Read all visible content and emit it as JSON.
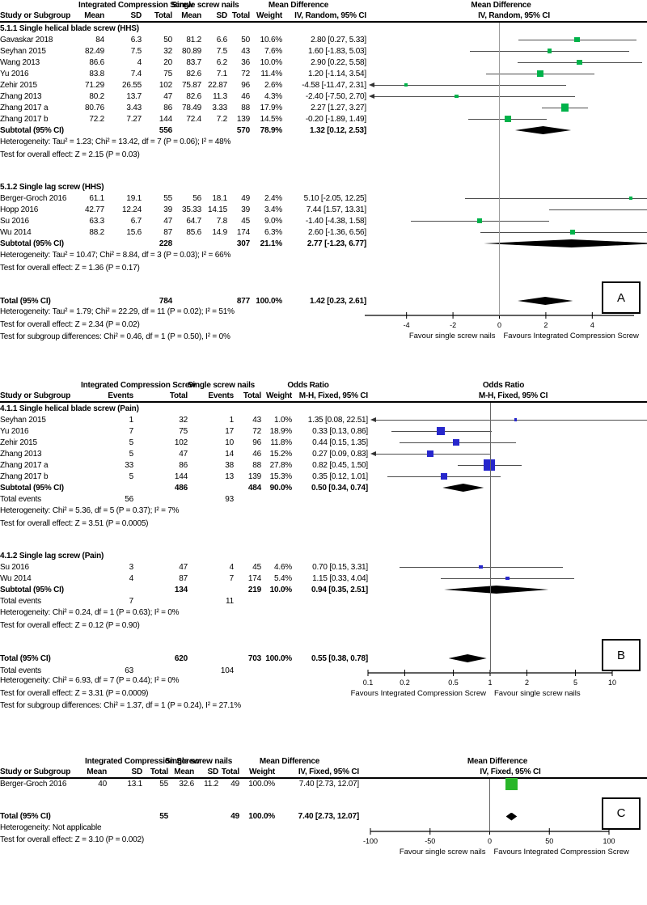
{
  "chart_data": [
    {
      "type": "forest",
      "label": "A",
      "effect_title": "Mean Difference",
      "effect_method": "IV, Random, 95% CI",
      "group1": "Integrated Compression Screw",
      "group2": "Single screw nails",
      "columns": [
        "Study or Subgroup",
        "Mean",
        "SD",
        "Total",
        "Mean",
        "SD",
        "Total",
        "Weight",
        "IV, Random, 95% CI"
      ],
      "colors": {
        "marker": "#00b24a",
        "diamond": "#000000",
        "zero_line": "#9c9c9c"
      },
      "axis": {
        "scale": "linear",
        "min": -5.8,
        "max": 5.8,
        "center": 0,
        "ticks": [
          -4,
          -2,
          0,
          2,
          4
        ],
        "tick_labels": [
          "-4",
          "-2",
          "0",
          "2",
          "4"
        ],
        "left_label": "Favour single screw nails",
        "right_label": "Favours Integrated Compression Screw"
      },
      "rows": [
        {
          "type": "subhead",
          "name": "5.1.1 Single helical blade screw (HHS)"
        },
        {
          "type": "study",
          "name": "Gavaskar 2018",
          "cells": [
            "84",
            "6.3",
            "50",
            "81.2",
            "6.6",
            "50",
            "10.6%",
            "2.80 [0.27, 5.33]"
          ],
          "est": 2.8,
          "lo": 0.27,
          "hi": 5.33,
          "w": 10.6
        },
        {
          "type": "study",
          "name": "Seyhan 2015",
          "cells": [
            "82.49",
            "7.5",
            "32",
            "80.89",
            "7.5",
            "43",
            "7.6%",
            "1.60 [-1.83, 5.03]"
          ],
          "est": 1.6,
          "lo": -1.83,
          "hi": 5.03,
          "w": 7.6
        },
        {
          "type": "study",
          "name": "Wang 2013",
          "cells": [
            "86.6",
            "4",
            "20",
            "83.7",
            "6.2",
            "36",
            "10.0%",
            "2.90 [0.22, 5.58]"
          ],
          "est": 2.9,
          "lo": 0.22,
          "hi": 5.58,
          "w": 10.0
        },
        {
          "type": "study",
          "name": "Yu 2016",
          "cells": [
            "83.8",
            "7.4",
            "75",
            "82.6",
            "7.1",
            "72",
            "11.4%",
            "1.20 [-1.14, 3.54]"
          ],
          "est": 1.2,
          "lo": -1.14,
          "hi": 3.54,
          "w": 11.4
        },
        {
          "type": "study",
          "name": "Zehir 2015",
          "cells": [
            "71.29",
            "26.55",
            "102",
            "75.87",
            "22.87",
            "96",
            "2.6%",
            "-4.58 [-11.47, 2.31]"
          ],
          "est": -4.58,
          "lo": -11.47,
          "hi": 2.31,
          "w": 2.6
        },
        {
          "type": "study",
          "name": "Zhang 2013",
          "cells": [
            "80.2",
            "13.7",
            "47",
            "82.6",
            "11.3",
            "46",
            "4.3%",
            "-2.40 [-7.50, 2.70]"
          ],
          "est": -2.4,
          "lo": -7.5,
          "hi": 2.7,
          "w": 4.3
        },
        {
          "type": "study",
          "name": "Zhang 2017 a",
          "cells": [
            "80.76",
            "3.43",
            "86",
            "78.49",
            "3.33",
            "88",
            "17.9%",
            "2.27 [1.27, 3.27]"
          ],
          "est": 2.27,
          "lo": 1.27,
          "hi": 3.27,
          "w": 17.9
        },
        {
          "type": "study",
          "name": "Zhang 2017 b",
          "cells": [
            "72.2",
            "7.27",
            "144",
            "72.4",
            "7.2",
            "139",
            "14.5%",
            "-0.20 [-1.89, 1.49]"
          ],
          "est": -0.2,
          "lo": -1.89,
          "hi": 1.49,
          "w": 14.5
        },
        {
          "type": "subtotal",
          "name": "Subtotal (95% CI)",
          "cells": [
            "",
            "",
            "556",
            "",
            "",
            "570",
            "78.9%",
            "1.32 [0.12, 2.53]"
          ],
          "est": 1.32,
          "lo": 0.12,
          "hi": 2.53
        },
        {
          "type": "note",
          "name": "Heterogeneity: Tau² = 1.23; Chi² = 13.42, df = 7 (P = 0.06); I² = 48%"
        },
        {
          "type": "note",
          "name": "Test for overall effect: Z = 2.15 (P = 0.03)"
        },
        {
          "type": "spacer"
        },
        {
          "type": "subhead",
          "name": "5.1.2 Single lag screw (HHS)"
        },
        {
          "type": "study",
          "name": "Berger-Groch 2016",
          "cells": [
            "61.1",
            "19.1",
            "55",
            "56",
            "18.1",
            "49",
            "2.4%",
            "5.10 [-2.05, 12.25]"
          ],
          "est": 5.1,
          "lo": -2.05,
          "hi": 12.25,
          "w": 2.4
        },
        {
          "type": "study",
          "name": "Hopp 2016",
          "cells": [
            "42.77",
            "12.24",
            "39",
            "35.33",
            "14.15",
            "39",
            "3.4%",
            "7.44 [1.57, 13.31]"
          ],
          "est": 7.44,
          "lo": 1.57,
          "hi": 13.31,
          "w": 3.4
        },
        {
          "type": "study",
          "name": "Su 2016",
          "cells": [
            "63.3",
            "6.7",
            "47",
            "64.7",
            "7.8",
            "45",
            "9.0%",
            "-1.40 [-4.38, 1.58]"
          ],
          "est": -1.4,
          "lo": -4.38,
          "hi": 1.58,
          "w": 9.0
        },
        {
          "type": "study",
          "name": "Wu 2014",
          "cells": [
            "88.2",
            "15.6",
            "87",
            "85.6",
            "14.9",
            "174",
            "6.3%",
            "2.60 [-1.36, 6.56]"
          ],
          "est": 2.6,
          "lo": -1.36,
          "hi": 6.56,
          "w": 6.3
        },
        {
          "type": "subtotal",
          "name": "Subtotal (95% CI)",
          "cells": [
            "",
            "",
            "228",
            "",
            "",
            "307",
            "21.1%",
            "2.77 [-1.23, 6.77]"
          ],
          "est": 2.77,
          "lo": -1.23,
          "hi": 6.77
        },
        {
          "type": "note",
          "name": "Heterogeneity: Tau² = 10.47; Chi² = 8.84, df = 3 (P = 0.03); I² = 66%"
        },
        {
          "type": "note",
          "name": "Test for overall effect: Z = 1.36 (P = 0.17)"
        },
        {
          "type": "spacer"
        },
        {
          "type": "total",
          "name": "Total (95% CI)",
          "cells": [
            "",
            "",
            "784",
            "",
            "",
            "877",
            "100.0%",
            "1.42 [0.23, 2.61]"
          ],
          "est": 1.42,
          "lo": 0.23,
          "hi": 2.61
        }
      ],
      "bottom_notes": [
        "Heterogeneity: Tau² = 1.79; Chi² = 22.29, df = 11 (P = 0.02); I² = 51%",
        "Test for overall effect: Z = 2.34 (P = 0.02)",
        "Test for subgroup differences: Chi² = 0.46, df = 1 (P = 0.50), I² = 0%"
      ]
    },
    {
      "type": "forest",
      "label": "B",
      "effect_title": "Odds Ratio",
      "effect_method": "M-H, Fixed, 95% CI",
      "group1": "Integrated Compression Screw",
      "group2": "Single screw nails",
      "columns": [
        "Study or Subgroup",
        "Events",
        "Total",
        "Events",
        "Total",
        "Weight",
        "M-H, Fixed, 95% CI"
      ],
      "colors": {
        "marker": "#2727cc",
        "diamond": "#000000",
        "zero_line": "#666666"
      },
      "axis": {
        "scale": "log",
        "min": 0.1,
        "max": 10,
        "center": 1,
        "ticks": [
          0.1,
          0.2,
          0.5,
          1,
          2,
          5,
          10
        ],
        "tick_labels": [
          "0.1",
          "0.2",
          "0.5",
          "1",
          "2",
          "5",
          "10"
        ],
        "left_label": "Favours Integrated Compression Screw",
        "right_label": "Favour single screw nails"
      },
      "rows": [
        {
          "type": "subhead",
          "name": "4.1.1 Single helical blade screw (Pain)"
        },
        {
          "type": "study",
          "name": "Seyhan 2015",
          "cells": [
            "1",
            "32",
            "1",
            "43",
            "1.0%",
            "1.35 [0.08, 22.51]"
          ],
          "est": 1.35,
          "lo": 0.08,
          "hi": 22.51,
          "w": 1.0
        },
        {
          "type": "study",
          "name": "Yu 2016",
          "cells": [
            "7",
            "75",
            "17",
            "72",
            "18.9%",
            "0.33 [0.13, 0.86]"
          ],
          "est": 0.33,
          "lo": 0.13,
          "hi": 0.86,
          "w": 18.9
        },
        {
          "type": "study",
          "name": "Zehir 2015",
          "cells": [
            "5",
            "102",
            "10",
            "96",
            "11.8%",
            "0.44 [0.15, 1.35]"
          ],
          "est": 0.44,
          "lo": 0.15,
          "hi": 1.35,
          "w": 11.8
        },
        {
          "type": "study",
          "name": "Zhang 2013",
          "cells": [
            "5",
            "47",
            "14",
            "46",
            "15.2%",
            "0.27 [0.09, 0.83]"
          ],
          "est": 0.27,
          "lo": 0.09,
          "hi": 0.83,
          "w": 15.2
        },
        {
          "type": "study",
          "name": "Zhang 2017 a",
          "cells": [
            "33",
            "86",
            "38",
            "88",
            "27.8%",
            "0.82 [0.45, 1.50]"
          ],
          "est": 0.82,
          "lo": 0.45,
          "hi": 1.5,
          "w": 27.8
        },
        {
          "type": "study",
          "name": "Zhang 2017 b",
          "cells": [
            "5",
            "144",
            "13",
            "139",
            "15.3%",
            "0.35 [0.12, 1.01]"
          ],
          "est": 0.35,
          "lo": 0.12,
          "hi": 1.01,
          "w": 15.3
        },
        {
          "type": "subtotal",
          "name": "Subtotal (95% CI)",
          "cells": [
            "",
            "486",
            "",
            "484",
            "90.0%",
            "0.50 [0.34, 0.74]"
          ],
          "est": 0.5,
          "lo": 0.34,
          "hi": 0.74
        },
        {
          "type": "totalevents",
          "name": "Total events",
          "cells": [
            "56",
            "",
            "93",
            "",
            "",
            ""
          ]
        },
        {
          "type": "note",
          "name": "Heterogeneity: Chi² = 5.36, df = 5 (P = 0.37); I² = 7%"
        },
        {
          "type": "note",
          "name": "Test for overall effect: Z = 3.51 (P = 0.0005)"
        },
        {
          "type": "spacer"
        },
        {
          "type": "subhead",
          "name": "4.1.2 Single lag screw (Pain)"
        },
        {
          "type": "study",
          "name": "Su 2016",
          "cells": [
            "3",
            "47",
            "4",
            "45",
            "4.6%",
            "0.70 [0.15, 3.31]"
          ],
          "est": 0.7,
          "lo": 0.15,
          "hi": 3.31,
          "w": 4.6
        },
        {
          "type": "study",
          "name": "Wu 2014",
          "cells": [
            "4",
            "87",
            "7",
            "174",
            "5.4%",
            "1.15 [0.33, 4.04]"
          ],
          "est": 1.15,
          "lo": 0.33,
          "hi": 4.04,
          "w": 5.4
        },
        {
          "type": "subtotal",
          "name": "Subtotal (95% CI)",
          "cells": [
            "",
            "134",
            "",
            "219",
            "10.0%",
            "0.94 [0.35, 2.51]"
          ],
          "est": 0.94,
          "lo": 0.35,
          "hi": 2.51
        },
        {
          "type": "totalevents",
          "name": "Total events",
          "cells": [
            "7",
            "",
            "11",
            "",
            "",
            ""
          ]
        },
        {
          "type": "note",
          "name": "Heterogeneity: Chi² = 0.24, df = 1 (P = 0.63); I² = 0%"
        },
        {
          "type": "note",
          "name": "Test for overall effect: Z = 0.12 (P = 0.90)"
        },
        {
          "type": "spacer"
        },
        {
          "type": "total",
          "name": "Total (95% CI)",
          "cells": [
            "",
            "620",
            "",
            "703",
            "100.0%",
            "0.55 [0.38, 0.78]"
          ],
          "est": 0.55,
          "lo": 0.38,
          "hi": 0.78
        }
      ],
      "bottom_rows": [
        {
          "type": "totalevents",
          "name": "Total events",
          "cells": [
            "63",
            "",
            "104",
            "",
            "",
            ""
          ]
        }
      ],
      "bottom_notes": [
        "Heterogeneity: Chi² = 6.93, df = 7 (P = 0.44); I² = 0%",
        "Test for overall effect: Z = 3.31 (P = 0.0009)",
        "Test for subgroup differences: Chi² = 1.37, df = 1 (P = 0.24), I² = 27.1%"
      ]
    },
    {
      "type": "forest",
      "label": "C",
      "effect_title": "Mean Difference",
      "effect_method": "IV, Fixed, 95% CI",
      "group1": "Integrated Compression Screw",
      "group2": "Single screw nails",
      "columns": [
        "Study or Subgroup",
        "Mean",
        "SD",
        "Total",
        "Mean",
        "SD",
        "Total",
        "Weight",
        "IV, Fixed, 95% CI"
      ],
      "colors": {
        "marker": "#2ab62a",
        "diamond": "#000000",
        "zero_line": "#666666"
      },
      "axis": {
        "scale": "linear",
        "min": -100,
        "max": 100,
        "center": 0,
        "ticks": [
          -100,
          -50,
          0,
          50,
          100
        ],
        "tick_labels": [
          "-100",
          "-50",
          "0",
          "50",
          "100"
        ],
        "left_label": "Favour single screw nails",
        "right_label": "Favours Integrated Compression Screw"
      },
      "rows": [
        {
          "type": "study",
          "name": "Berger-Groch 2016",
          "cells": [
            "40",
            "13.1",
            "55",
            "32.6",
            "11.2",
            "49",
            "100.0%",
            "7.40 [2.73, 12.07]"
          ],
          "est": 7.4,
          "lo": 2.73,
          "hi": 12.07,
          "w": 100.0
        },
        {
          "type": "spacer"
        },
        {
          "type": "total",
          "name": "Total (95% CI)",
          "cells": [
            "",
            "",
            "55",
            "",
            "",
            "49",
            "100.0%",
            "7.40 [2.73, 12.07]"
          ],
          "est": 7.4,
          "lo": 2.73,
          "hi": 12.07
        }
      ],
      "bottom_notes": [
        "Heterogeneity: Not applicable",
        "Test for overall effect: Z = 3.10 (P = 0.002)"
      ]
    }
  ]
}
